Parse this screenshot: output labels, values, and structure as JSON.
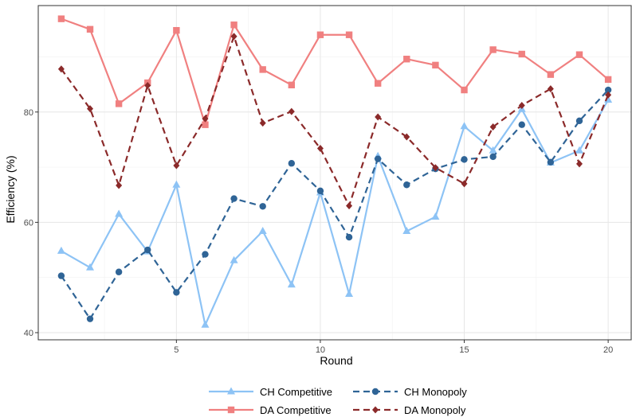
{
  "chart_data": {
    "type": "line",
    "title": "",
    "xlabel": "Round",
    "ylabel": "Efficiency (%)",
    "xlim": [
      0.2,
      20.8
    ],
    "ylim": [
      38.7,
      99.3
    ],
    "x_ticks": [
      5,
      10,
      15,
      20
    ],
    "y_ticks": [
      40,
      60,
      80
    ],
    "grid": true,
    "legend_position": "bottom",
    "x": [
      1,
      2,
      3,
      4,
      5,
      6,
      7,
      8,
      9,
      10,
      11,
      12,
      13,
      14,
      15,
      16,
      17,
      18,
      19,
      20
    ],
    "series": [
      {
        "name": "CH Competitive",
        "color": "#8DC3F5",
        "dash": "solid",
        "marker": "triangle",
        "values": [
          54.8,
          51.8,
          61.5,
          54.7,
          66.8,
          41.4,
          53.1,
          58.4,
          48.7,
          65.4,
          47.0,
          72.0,
          58.4,
          61.0,
          77.4,
          73.0,
          80.5,
          70.8,
          73.0,
          82.2
        ]
      },
      {
        "name": "CH Monopoly",
        "color": "#2F6496",
        "dash": "dashed",
        "marker": "circle",
        "values": [
          50.3,
          42.5,
          51.0,
          55.0,
          47.3,
          54.2,
          64.3,
          62.9,
          70.7,
          65.7,
          57.3,
          71.5,
          66.8,
          69.7,
          71.4,
          71.9,
          77.7,
          70.9,
          78.4,
          84.0
        ]
      },
      {
        "name": "DA Competitive",
        "color": "#F08080",
        "dash": "solid",
        "marker": "square",
        "values": [
          96.9,
          95.0,
          81.5,
          85.3,
          94.8,
          77.7,
          95.8,
          87.7,
          84.9,
          94.0,
          94.0,
          85.2,
          89.6,
          88.5,
          84.0,
          91.3,
          90.5,
          86.8,
          90.4,
          85.9
        ]
      },
      {
        "name": "DA Monopoly",
        "color": "#8B2A2A",
        "dash": "dashed",
        "marker": "diamond",
        "values": [
          87.8,
          80.6,
          66.7,
          84.8,
          70.3,
          78.8,
          93.7,
          78.0,
          80.1,
          73.4,
          63.0,
          79.1,
          75.5,
          69.9,
          67.0,
          77.3,
          81.2,
          84.2,
          70.6,
          83.1
        ]
      }
    ]
  }
}
